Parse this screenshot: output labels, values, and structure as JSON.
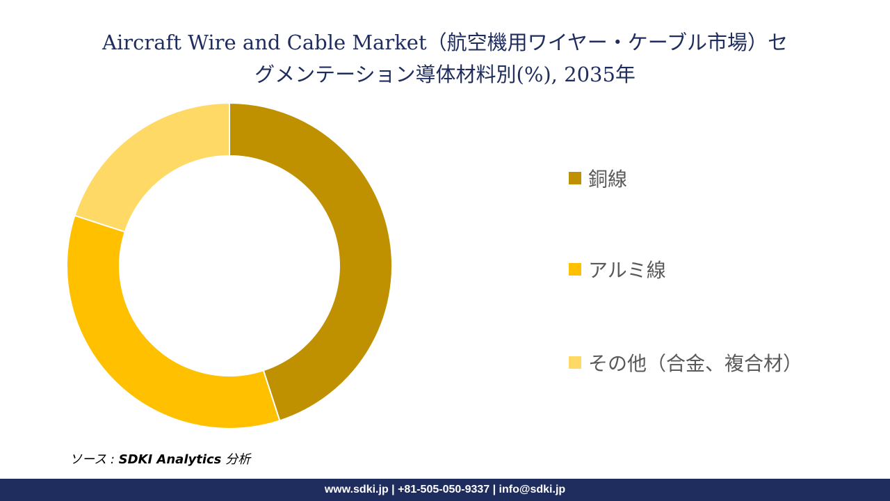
{
  "title": {
    "line1": "Aircraft Wire and Cable Market（航空機用ワイヤー・ケーブル市場）セ",
    "line2": "グメンテーション導体材料別(%), 2035年"
  },
  "chart_data": {
    "type": "pie",
    "style": "donut",
    "categories": [
      "銅線",
      "アルミ線",
      "その他（合金、複合材）"
    ],
    "values": [
      45,
      35,
      20
    ],
    "colors": [
      "#BF9000",
      "#FFC000",
      "#FFD966"
    ],
    "legend_position": "right"
  },
  "source": {
    "prefix": "ソース : ",
    "org": "SDKI Analytics",
    "suffix": " 分析"
  },
  "footer": {
    "text": "www.sdki.jp | +81-505-050-9337 | info@sdki.jp"
  }
}
